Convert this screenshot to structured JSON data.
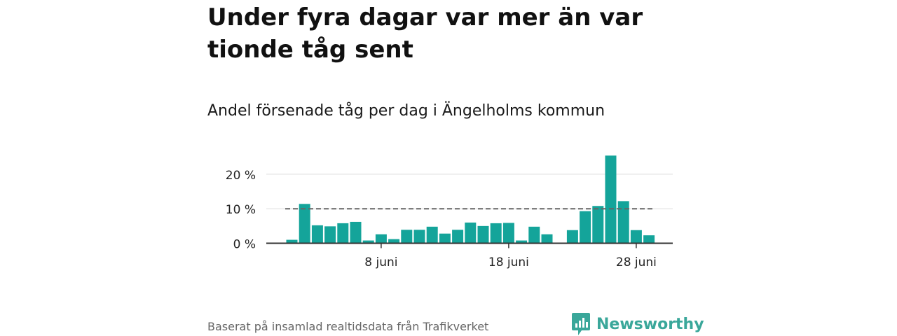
{
  "header": {
    "title": "Under fyra dagar var mer än var tionde tåg sent",
    "subtitle": "Andel försenade tåg per dag i Ängelholms kommun"
  },
  "footer": {
    "source": "Baserat på insamlad realtidsdata från Trafikverket",
    "brand": "Newsworthy"
  },
  "colors": {
    "bar": "#14a49a",
    "brand": "#3aa79a",
    "reference": "#666666"
  },
  "chart_data": {
    "type": "bar",
    "title": "Under fyra dagar var mer än var tionde tåg sent",
    "subtitle": "Andel försenade tåg per dag i Ängelholms kommun",
    "x": [
      "2020-06-01",
      "2020-06-02",
      "2020-06-03",
      "2020-06-04",
      "2020-06-05",
      "2020-06-06",
      "2020-06-07",
      "2020-06-08",
      "2020-06-09",
      "2020-06-10",
      "2020-06-11",
      "2020-06-12",
      "2020-06-13",
      "2020-06-14",
      "2020-06-15",
      "2020-06-16",
      "2020-06-17",
      "2020-06-18",
      "2020-06-19",
      "2020-06-20",
      "2020-06-21",
      "2020-06-22",
      "2020-06-23",
      "2020-06-24",
      "2020-06-25",
      "2020-06-26",
      "2020-06-27",
      "2020-06-28",
      "2020-06-29",
      "2020-06-30"
    ],
    "values": [
      1.0,
      11.4,
      5.2,
      4.9,
      5.8,
      6.2,
      0.8,
      2.6,
      1.2,
      3.9,
      3.9,
      4.8,
      2.8,
      3.9,
      6.0,
      5.0,
      5.8,
      5.9,
      0.8,
      4.8,
      2.6,
      null,
      3.8,
      9.3,
      10.8,
      25.4,
      12.2,
      3.8,
      2.3,
      null
    ],
    "reference_line": {
      "value": 10,
      "style": "dashed"
    },
    "yticks": [
      0,
      10,
      20
    ],
    "ytick_labels": [
      "0 %",
      "10 %",
      "20 %"
    ],
    "xticks": [
      "2020-06-08",
      "2020-06-18",
      "2020-06-28"
    ],
    "xtick_labels": [
      "8 juni",
      "18 juni",
      "28 juni"
    ],
    "ylim": [
      0,
      26
    ],
    "grid": true,
    "legend": "none"
  }
}
